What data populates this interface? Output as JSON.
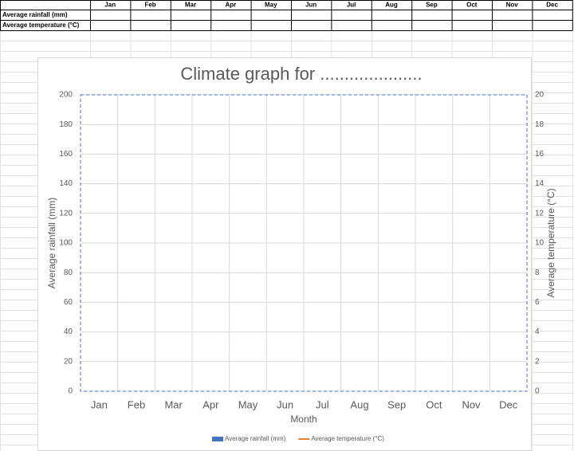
{
  "table": {
    "columns": [
      "Jan",
      "Feb",
      "Mar",
      "Apr",
      "May",
      "Jun",
      "Jul",
      "Aug",
      "Sep",
      "Oct",
      "Nov",
      "Dec"
    ],
    "rows": [
      "Average rainfall (mm)",
      "Average temperature (°C)"
    ]
  },
  "chart_data": {
    "type": "combo",
    "title": "Climate graph for .....................",
    "x_label": "Month",
    "y_label": "Average rainfall (mm)",
    "y2_label": "Average temperature (°C)",
    "categories": [
      "Jan",
      "Feb",
      "Mar",
      "Apr",
      "May",
      "Jun",
      "Jul",
      "Aug",
      "Sep",
      "Oct",
      "Nov",
      "Dec"
    ],
    "series": [
      {
        "name": "Average rainfall (mm)",
        "type": "bar",
        "color": "#4472c4",
        "values": [
          null,
          null,
          null,
          null,
          null,
          null,
          null,
          null,
          null,
          null,
          null,
          null
        ]
      },
      {
        "name": "Average temperature (°C)",
        "type": "line",
        "axis": "y2",
        "color": "#ed7d31",
        "values": [
          null,
          null,
          null,
          null,
          null,
          null,
          null,
          null,
          null,
          null,
          null,
          null
        ]
      }
    ],
    "ylim": [
      0,
      200
    ],
    "yticks": [
      0,
      20,
      40,
      60,
      80,
      100,
      120,
      140,
      160,
      180,
      200
    ],
    "y2lim": [
      0,
      20
    ],
    "y2ticks": [
      0,
      2,
      4,
      6,
      8,
      10,
      12,
      14,
      16,
      18,
      20
    ],
    "grid": true,
    "legend": "bottom"
  }
}
